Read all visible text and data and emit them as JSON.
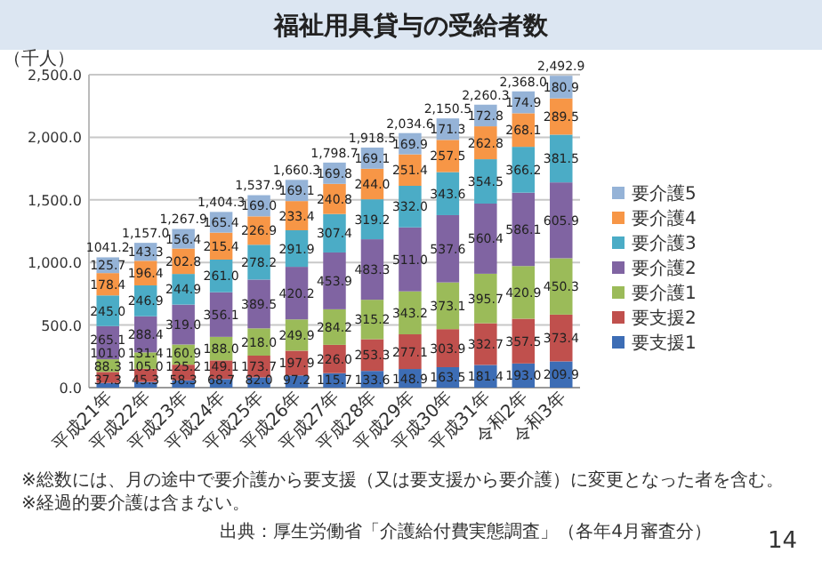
{
  "chart_data": {
    "type": "bar",
    "stacked": true,
    "title": "福祉用具貸与の受給者数",
    "ylabel": "（千人）",
    "categories": [
      "平成21年",
      "平成22年",
      "平成23年",
      "平成24年",
      "平成25年",
      "平成26年",
      "平成27年",
      "平成28年",
      "平成29年",
      "平成30年",
      "平成31年",
      "令和2年",
      "令和3年"
    ],
    "series": [
      {
        "name": "要支援1",
        "color": "#3d6db5",
        "values": [
          37.3,
          45.3,
          58.3,
          68.7,
          82.0,
          97.2,
          115.7,
          133.6,
          148.9,
          163.5,
          181.4,
          193.0,
          209.9
        ],
        "value_labels": [
          "37.3",
          "45.3",
          "58.3",
          "68.7",
          "82.0",
          "97.2",
          "115.7",
          "133.6",
          "148.9",
          "163.5",
          "181.4",
          "193.0",
          "209.9"
        ]
      },
      {
        "name": "要支援2",
        "color": "#c0504d",
        "values": [
          88.3,
          105.0,
          125.2,
          149.1,
          173.7,
          197.9,
          226.0,
          253.3,
          277.1,
          303.9,
          332.7,
          357.5,
          373.4
        ],
        "value_labels": [
          "88.3",
          "105.0",
          "125.2",
          "149.1",
          "173.7",
          "197.9",
          "226.0",
          "253.3",
          "277.1",
          "303.9",
          "332.7",
          "357.5",
          "373.4"
        ]
      },
      {
        "name": "要介護1",
        "color": "#9bbb59",
        "values": [
          101.0,
          131.4,
          160.9,
          188.0,
          218.0,
          249.9,
          284.2,
          315.2,
          343.2,
          373.1,
          395.7,
          420.9,
          450.3
        ],
        "value_labels": [
          "101.0",
          "131.4",
          "160.9",
          "188.0",
          "218.0",
          "249.9",
          "284.2",
          "315.2",
          "343.2",
          "373.1",
          "395.7",
          "420.9",
          "450.3"
        ]
      },
      {
        "name": "要介護2",
        "color": "#8064a2",
        "values": [
          265.1,
          288.4,
          319.0,
          356.1,
          389.5,
          420.2,
          453.9,
          483.3,
          511.0,
          537.6,
          560.4,
          586.1,
          605.9
        ],
        "value_labels": [
          "265.1",
          "288.4",
          "319.0",
          "356.1",
          "389.5",
          "420.2",
          "453.9",
          "483.3",
          "511.0",
          "537.6",
          "560.4",
          "586.1",
          "605.9"
        ]
      },
      {
        "name": "要介護3",
        "color": "#4bacc6",
        "values": [
          245.0,
          246.9,
          244.9,
          261.0,
          278.2,
          291.9,
          307.4,
          319.2,
          332.0,
          343.6,
          354.5,
          366.2,
          381.5
        ],
        "value_labels": [
          "245.0",
          "246.9",
          "244.9",
          "261.0",
          "278.2",
          "291.9",
          "307.4",
          "319.2",
          "332.0",
          "343.6",
          "354.5",
          "366.2",
          "381.5"
        ]
      },
      {
        "name": "要介護4",
        "color": "#f79646",
        "values": [
          178.4,
          196.4,
          202.8,
          215.4,
          226.9,
          233.4,
          240.8,
          244.0,
          251.4,
          257.5,
          262.8,
          268.1,
          289.5
        ],
        "value_labels": [
          "178.4",
          "196.4",
          "202.8",
          "215.4",
          "226.9",
          "233.4",
          "240.8",
          "244.0",
          "251.4",
          "257.5",
          "262.8",
          "268.1",
          "289.5"
        ]
      },
      {
        "name": "要介護5",
        "color": "#95b3d7",
        "values": [
          125.7,
          143.3,
          156.4,
          165.4,
          169.0,
          169.1,
          169.8,
          169.1,
          169.9,
          171.3,
          172.8,
          174.9,
          180.9
        ],
        "value_labels": [
          "125.7",
          "143.3",
          "156.4",
          "165.4",
          "169.0",
          "169.1",
          "169.8",
          "169.1",
          "169.9",
          "171.3",
          "172.8",
          "174.9",
          "180.9"
        ]
      }
    ],
    "ylim": [
      0,
      2500
    ],
    "yticks": [
      {
        "value": 0,
        "label": "0.0"
      },
      {
        "value": 500,
        "label": "500.0"
      },
      {
        "value": 1000,
        "label": "1,000.0"
      },
      {
        "value": 1500,
        "label": "1,500.0"
      },
      {
        "value": 2000,
        "label": "2,000.0"
      },
      {
        "value": 2500,
        "label": "2,500.0"
      }
    ],
    "grid": "y",
    "legend": "right",
    "annotations": [
      "※総数には、月の途中で要介護から要支援（又は要支援から要介護）に変更となった者を含む。",
      "※経過的要介護は含まない。",
      "出典：厚生労働省「介護給付費実態調査」（各年4月審査分）",
      "14",
      {
        "text": "1041.2",
        "x": "平成21年",
        "y": 1041.2
      },
      {
        "text": "1,157.0",
        "x": "平成22年",
        "y": 1157.0
      },
      {
        "text": "1,267.9",
        "x": "平成23年",
        "y": 1267.9
      },
      {
        "text": "1,404.3",
        "x": "平成24年",
        "y": 1404.3
      },
      {
        "text": "1,537.9",
        "x": "平成25年",
        "y": 1537.9
      },
      {
        "text": "1,660.3",
        "x": "平成26年",
        "y": 1660.3
      },
      {
        "text": "1,798.7",
        "x": "平成27年",
        "y": 1798.7
      },
      {
        "text": "1,918.5",
        "x": "平成28年",
        "y": 1918.5
      },
      {
        "text": "2,034.6",
        "x": "平成29年",
        "y": 2034.6
      },
      {
        "text": "2,150.5",
        "x": "平成30年",
        "y": 2150.5
      },
      {
        "text": "2,260.3",
        "x": "平成31年",
        "y": 2260.3
      },
      {
        "text": "2,368.0",
        "x": "令和2年",
        "y": 2368.0
      },
      {
        "text": "2,492.9",
        "x": "令和3年",
        "y": 2492.9
      }
    ]
  }
}
